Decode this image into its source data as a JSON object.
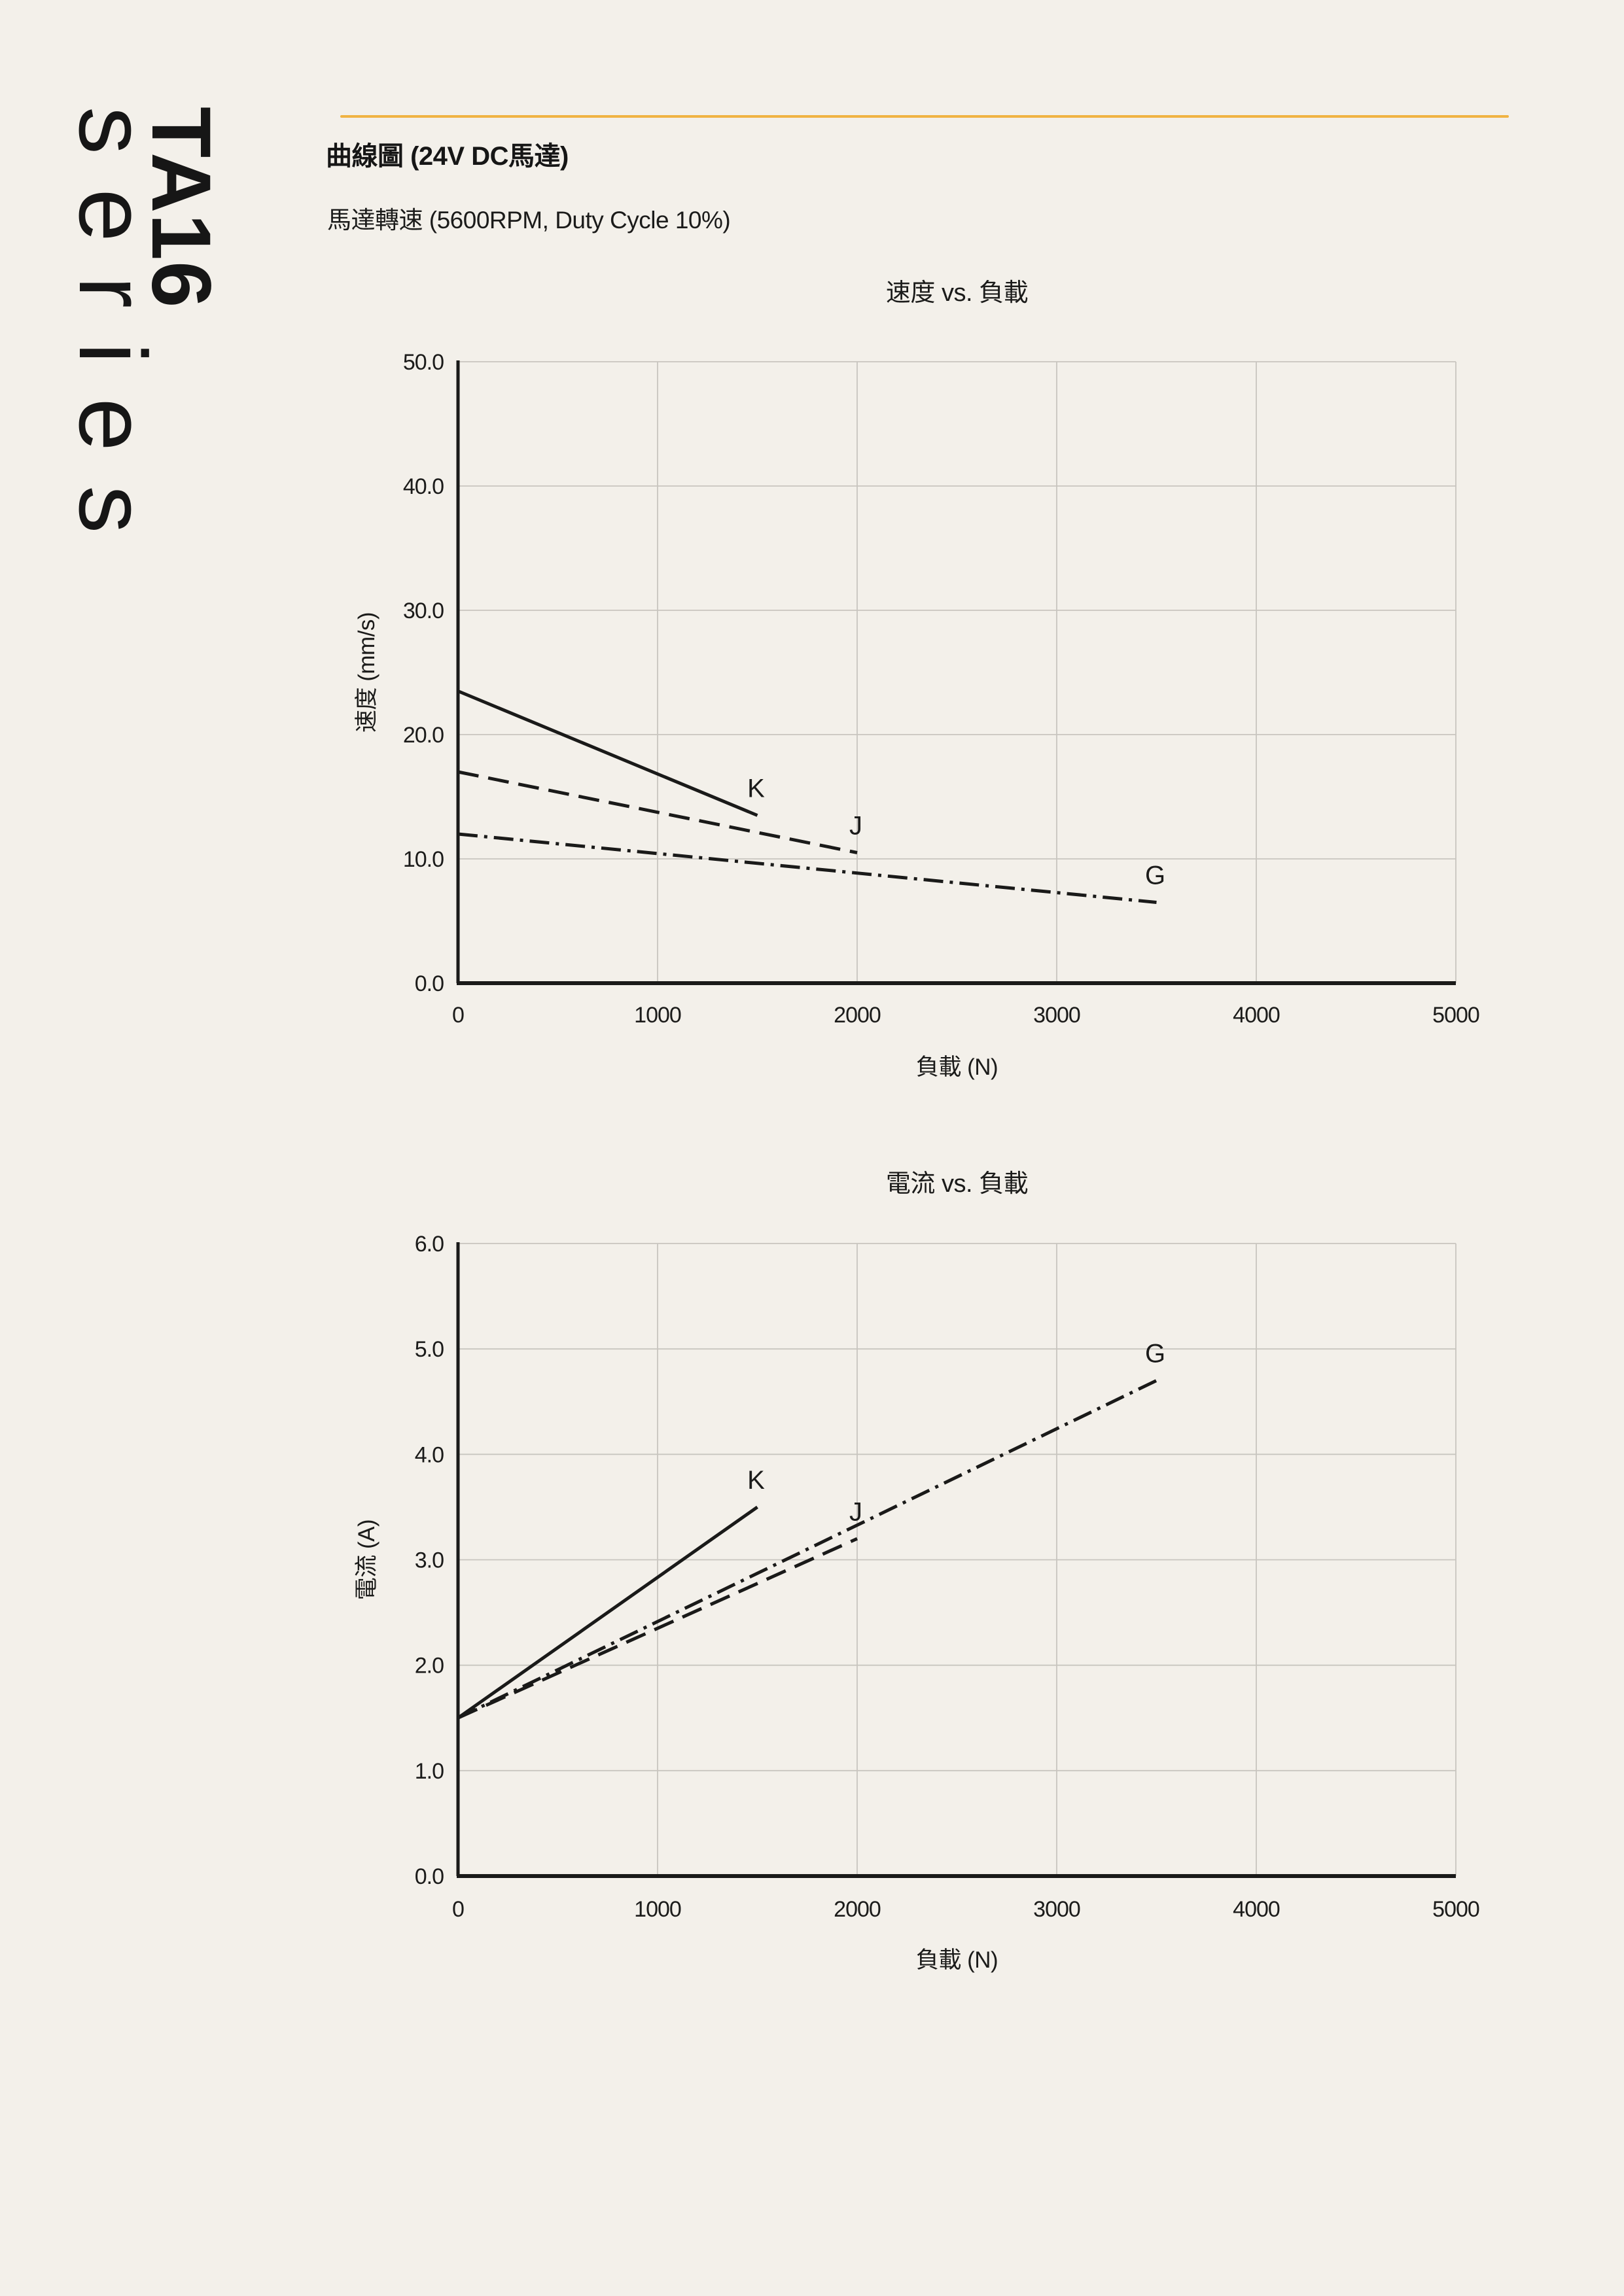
{
  "page": {
    "background": "#F3F0EA",
    "accent_color": "#F0B342",
    "text_color": "#1B1B1A",
    "grid_color": "#C8C5BF",
    "line_color": "#1A1A19"
  },
  "brand": {
    "series_code": "TA16",
    "series_word": "series"
  },
  "header": {
    "title": "曲線圖 (24V DC馬達)",
    "subtitle": "馬達轉速 (5600RPM, Duty Cycle 10%)"
  },
  "chart_data": [
    {
      "type": "line",
      "title": "速度 vs. 負載",
      "xlabel": "負載 (N)",
      "ylabel": "速度 (mm/s)",
      "xlim": [
        0,
        5000
      ],
      "ylim": [
        0,
        50
      ],
      "grid": true,
      "legend_position": "inline-end-labels",
      "xticks": [
        "0",
        "1000",
        "2000",
        "3000",
        "4000",
        "5000"
      ],
      "xtick_values": [
        0,
        1000,
        2000,
        3000,
        4000,
        5000
      ],
      "yticks": [
        "0.0",
        "10.0",
        "20.0",
        "30.0",
        "40.0",
        "50.0"
      ],
      "ytick_values": [
        0,
        10,
        20,
        30,
        40,
        50
      ],
      "series": [
        {
          "name": "K",
          "style": "solid",
          "points": [
            [
              0,
              23.5
            ],
            [
              1500,
              13.5
            ]
          ]
        },
        {
          "name": "J",
          "style": "dashed",
          "points": [
            [
              0,
              17.0
            ],
            [
              2000,
              10.5
            ]
          ]
        },
        {
          "name": "G",
          "style": "dashdot",
          "points": [
            [
              0,
              12.0
            ],
            [
              3500,
              6.5
            ]
          ]
        }
      ]
    },
    {
      "type": "line",
      "title": "電流 vs. 負載",
      "xlabel": "負載 (N)",
      "ylabel": "電流 (A)",
      "xlim": [
        0,
        5000
      ],
      "ylim": [
        0,
        6
      ],
      "grid": true,
      "legend_position": "inline-end-labels",
      "xticks": [
        "0",
        "1000",
        "2000",
        "3000",
        "4000",
        "5000"
      ],
      "xtick_values": [
        0,
        1000,
        2000,
        3000,
        4000,
        5000
      ],
      "yticks": [
        "0.0",
        "1.0",
        "2.0",
        "3.0",
        "4.0",
        "5.0",
        "6.0"
      ],
      "ytick_values": [
        0,
        1,
        2,
        3,
        4,
        5,
        6
      ],
      "series": [
        {
          "name": "K",
          "style": "solid",
          "points": [
            [
              0,
              1.5
            ],
            [
              1500,
              3.5
            ]
          ]
        },
        {
          "name": "J",
          "style": "dashed",
          "points": [
            [
              0,
              1.5
            ],
            [
              2000,
              3.2
            ]
          ]
        },
        {
          "name": "G",
          "style": "dashdot",
          "points": [
            [
              0,
              1.5
            ],
            [
              3500,
              4.7
            ]
          ]
        }
      ]
    }
  ]
}
